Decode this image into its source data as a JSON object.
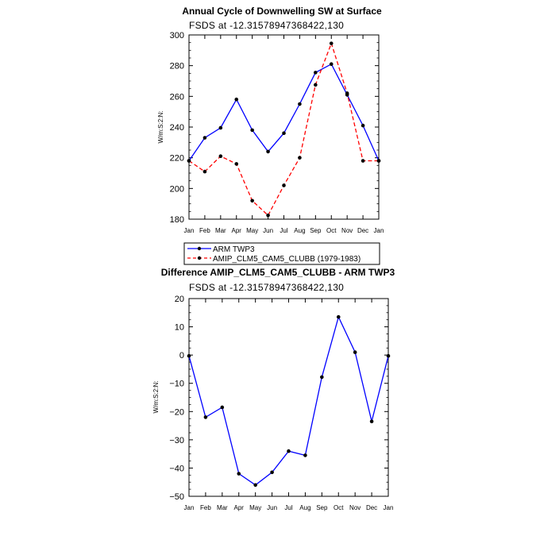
{
  "colors": {
    "series_obs": "#0000ff",
    "series_model": "#ff0000",
    "axis": "#000000"
  },
  "chart_data": [
    {
      "type": "line",
      "title": "Annual Cycle of Downwelling SW at Surface",
      "subtitle": "FSDS at -12.31578947368422,130",
      "ylabel": "W/m:S:2:N:",
      "categories": [
        "Jan",
        "Feb",
        "Mar",
        "Apr",
        "May",
        "Jun",
        "Jul",
        "Aug",
        "Sep",
        "Oct",
        "Nov",
        "Dec",
        "Jan"
      ],
      "ylim": [
        180,
        300
      ],
      "yticks": [
        180,
        200,
        220,
        240,
        260,
        280,
        300
      ],
      "series": [
        {
          "name": "ARM TWP3",
          "style": "solid",
          "color": "#0000ff",
          "values": [
            218,
            233,
            239.5,
            258,
            238,
            224,
            236,
            255,
            275.5,
            281,
            261,
            241,
            218
          ]
        },
        {
          "name": "AMIP_CLM5_CAM5_CLUBB (1979-1983)",
          "style": "dashed",
          "color": "#ff0000",
          "values": [
            218,
            211,
            221,
            216,
            192,
            182.5,
            202,
            220,
            267.5,
            294.5,
            262,
            218,
            218
          ]
        }
      ],
      "legend": [
        "ARM TWP3",
        "AMIP_CLM5_CAM5_CLUBB (1979-1983)"
      ],
      "legend_position": "bottom-left"
    },
    {
      "type": "line",
      "title": "Difference AMIP_CLM5_CAM5_CLUBB - ARM TWP3",
      "subtitle": "FSDS at -12.31578947368422,130",
      "ylabel": "W/m:S:2:N:",
      "categories": [
        "Jan",
        "Feb",
        "Mar",
        "Apr",
        "May",
        "Jun",
        "Jul",
        "Aug",
        "Sep",
        "Oct",
        "Nov",
        "Dec",
        "Jan"
      ],
      "ylim": [
        -50,
        20
      ],
      "yticks": [
        -50,
        -40,
        -30,
        -20,
        -10,
        0,
        10,
        20
      ],
      "series": [
        {
          "name": "Difference",
          "style": "solid",
          "color": "#0000ff",
          "values": [
            -0.3,
            -22,
            -18.5,
            -42,
            -46,
            -41.5,
            -34,
            -35.5,
            -7.8,
            13.5,
            1,
            -23.5,
            -0.3
          ]
        }
      ]
    }
  ]
}
